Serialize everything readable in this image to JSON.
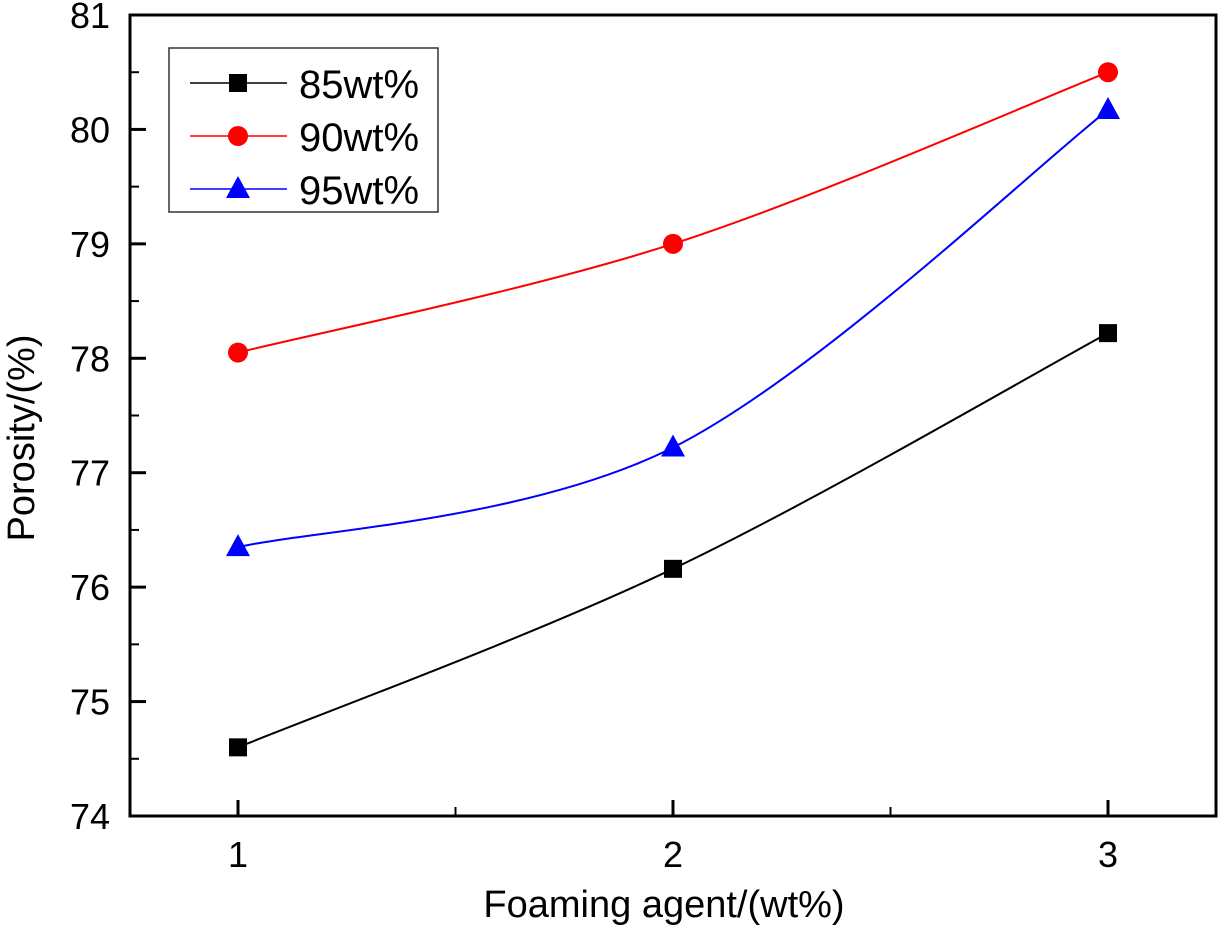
{
  "chart_data": {
    "type": "line",
    "title": "",
    "xlabel": "Foaming agent/(wt%)",
    "ylabel": "Porosity/(%)",
    "xlim": [
      0.76,
      3.25
    ],
    "ylim": [
      74,
      81
    ],
    "x": [
      1,
      2,
      3
    ],
    "x_ticks": [
      1,
      2,
      3
    ],
    "x_tick_labels": [
      "1",
      "2",
      "3"
    ],
    "x_minor_ticks": [
      1.5,
      2.5
    ],
    "y_ticks": [
      74,
      75,
      76,
      77,
      78,
      79,
      80,
      81
    ],
    "y_tick_labels": [
      "74",
      "75",
      "76",
      "77",
      "78",
      "79",
      "80",
      "81"
    ],
    "y_minor_ticks": [
      74.5,
      75.5,
      76.5,
      77.5,
      78.5,
      79.5,
      80.5
    ],
    "grid": false,
    "legend_position": "top-left",
    "series": [
      {
        "name": "85wt%",
        "values": [
          74.6,
          76.16,
          78.22
        ],
        "color": "#000000",
        "marker": "square"
      },
      {
        "name": "90wt%",
        "values": [
          78.05,
          79.0,
          80.5
        ],
        "color": "#ff0000",
        "marker": "circle"
      },
      {
        "name": "95wt%",
        "values": [
          76.35,
          77.22,
          80.17
        ],
        "color": "#0000ff",
        "marker": "triangle"
      }
    ]
  }
}
